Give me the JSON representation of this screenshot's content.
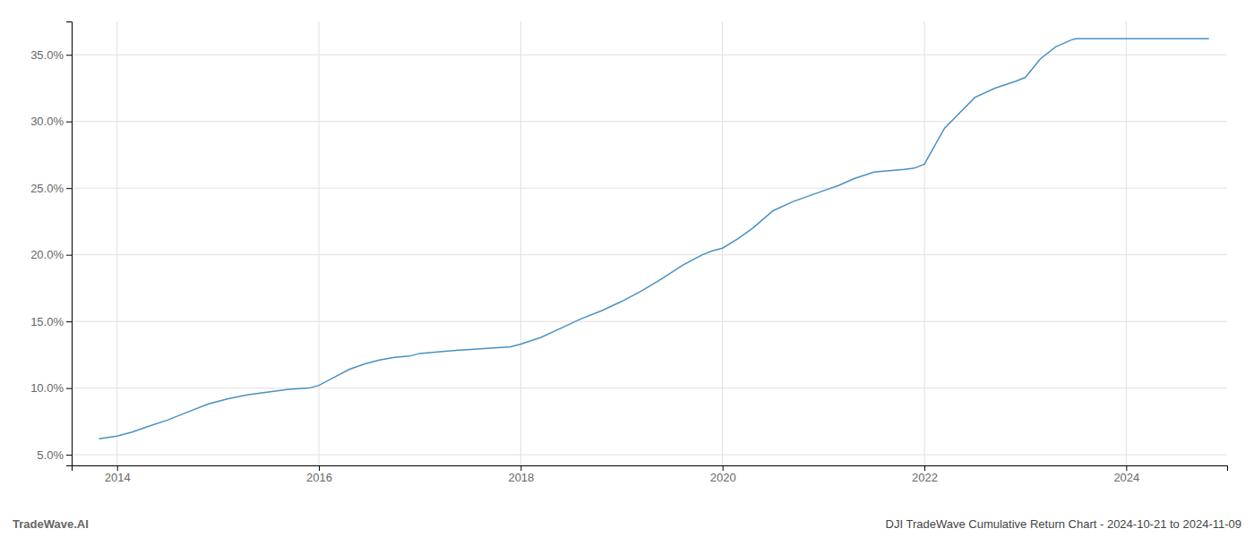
{
  "chart_data": {
    "type": "line",
    "title": "DJI TradeWave Cumulative Return Chart - 2024-10-21 to 2024-11-09",
    "annotations": [
      "TradeWave.AI"
    ],
    "x": [
      2013.82,
      2014.0,
      2014.15,
      2014.3,
      2014.5,
      2014.7,
      2014.9,
      2015.1,
      2015.3,
      2015.5,
      2015.7,
      2015.9,
      2016.0,
      2016.15,
      2016.3,
      2016.45,
      2016.6,
      2016.75,
      2016.9,
      2017.0,
      2017.15,
      2017.3,
      2017.5,
      2017.7,
      2017.9,
      2018.0,
      2018.2,
      2018.4,
      2018.6,
      2018.8,
      2019.0,
      2019.2,
      2019.4,
      2019.6,
      2019.8,
      2019.9,
      2020.0,
      2020.15,
      2020.3,
      2020.5,
      2020.7,
      2020.85,
      2021.0,
      2021.15,
      2021.3,
      2021.5,
      2021.65,
      2021.8,
      2021.9,
      2022.0,
      2022.2,
      2022.5,
      2022.7,
      2022.9,
      2023.0,
      2023.15,
      2023.3,
      2023.45,
      2023.5,
      2023.6,
      2023.8,
      2024.0,
      2024.5,
      2024.82
    ],
    "values": [
      0.062,
      0.064,
      0.067,
      0.071,
      0.076,
      0.082,
      0.088,
      0.092,
      0.095,
      0.097,
      0.099,
      0.1,
      0.102,
      0.108,
      0.114,
      0.118,
      0.121,
      0.123,
      0.124,
      0.126,
      0.127,
      0.128,
      0.129,
      0.13,
      0.131,
      0.133,
      0.138,
      0.145,
      0.152,
      0.158,
      0.165,
      0.173,
      0.182,
      0.192,
      0.2,
      0.203,
      0.205,
      0.212,
      0.22,
      0.233,
      0.24,
      0.244,
      0.248,
      0.252,
      0.257,
      0.262,
      0.263,
      0.264,
      0.265,
      0.268,
      0.295,
      0.318,
      0.325,
      0.33,
      0.333,
      0.347,
      0.356,
      0.361,
      0.362,
      0.362,
      0.362,
      0.362,
      0.362,
      0.362
    ],
    "color": "#4a90c4",
    "xlim": [
      2013.55,
      2025.0
    ],
    "xticks": [
      2014,
      2016,
      2018,
      2020,
      2022,
      2024
    ],
    "ylim": [
      0.042,
      0.375
    ],
    "yticks": [
      {
        "value": 0.05,
        "label": "5.0%"
      },
      {
        "value": 0.1,
        "label": "10.0%"
      },
      {
        "value": 0.15,
        "label": "15.0%"
      },
      {
        "value": 0.2,
        "label": "20.0%"
      },
      {
        "value": 0.25,
        "label": "25.0%"
      },
      {
        "value": 0.3,
        "label": "30.0%"
      },
      {
        "value": 0.35,
        "label": "35.0%"
      }
    ],
    "grid": true
  }
}
